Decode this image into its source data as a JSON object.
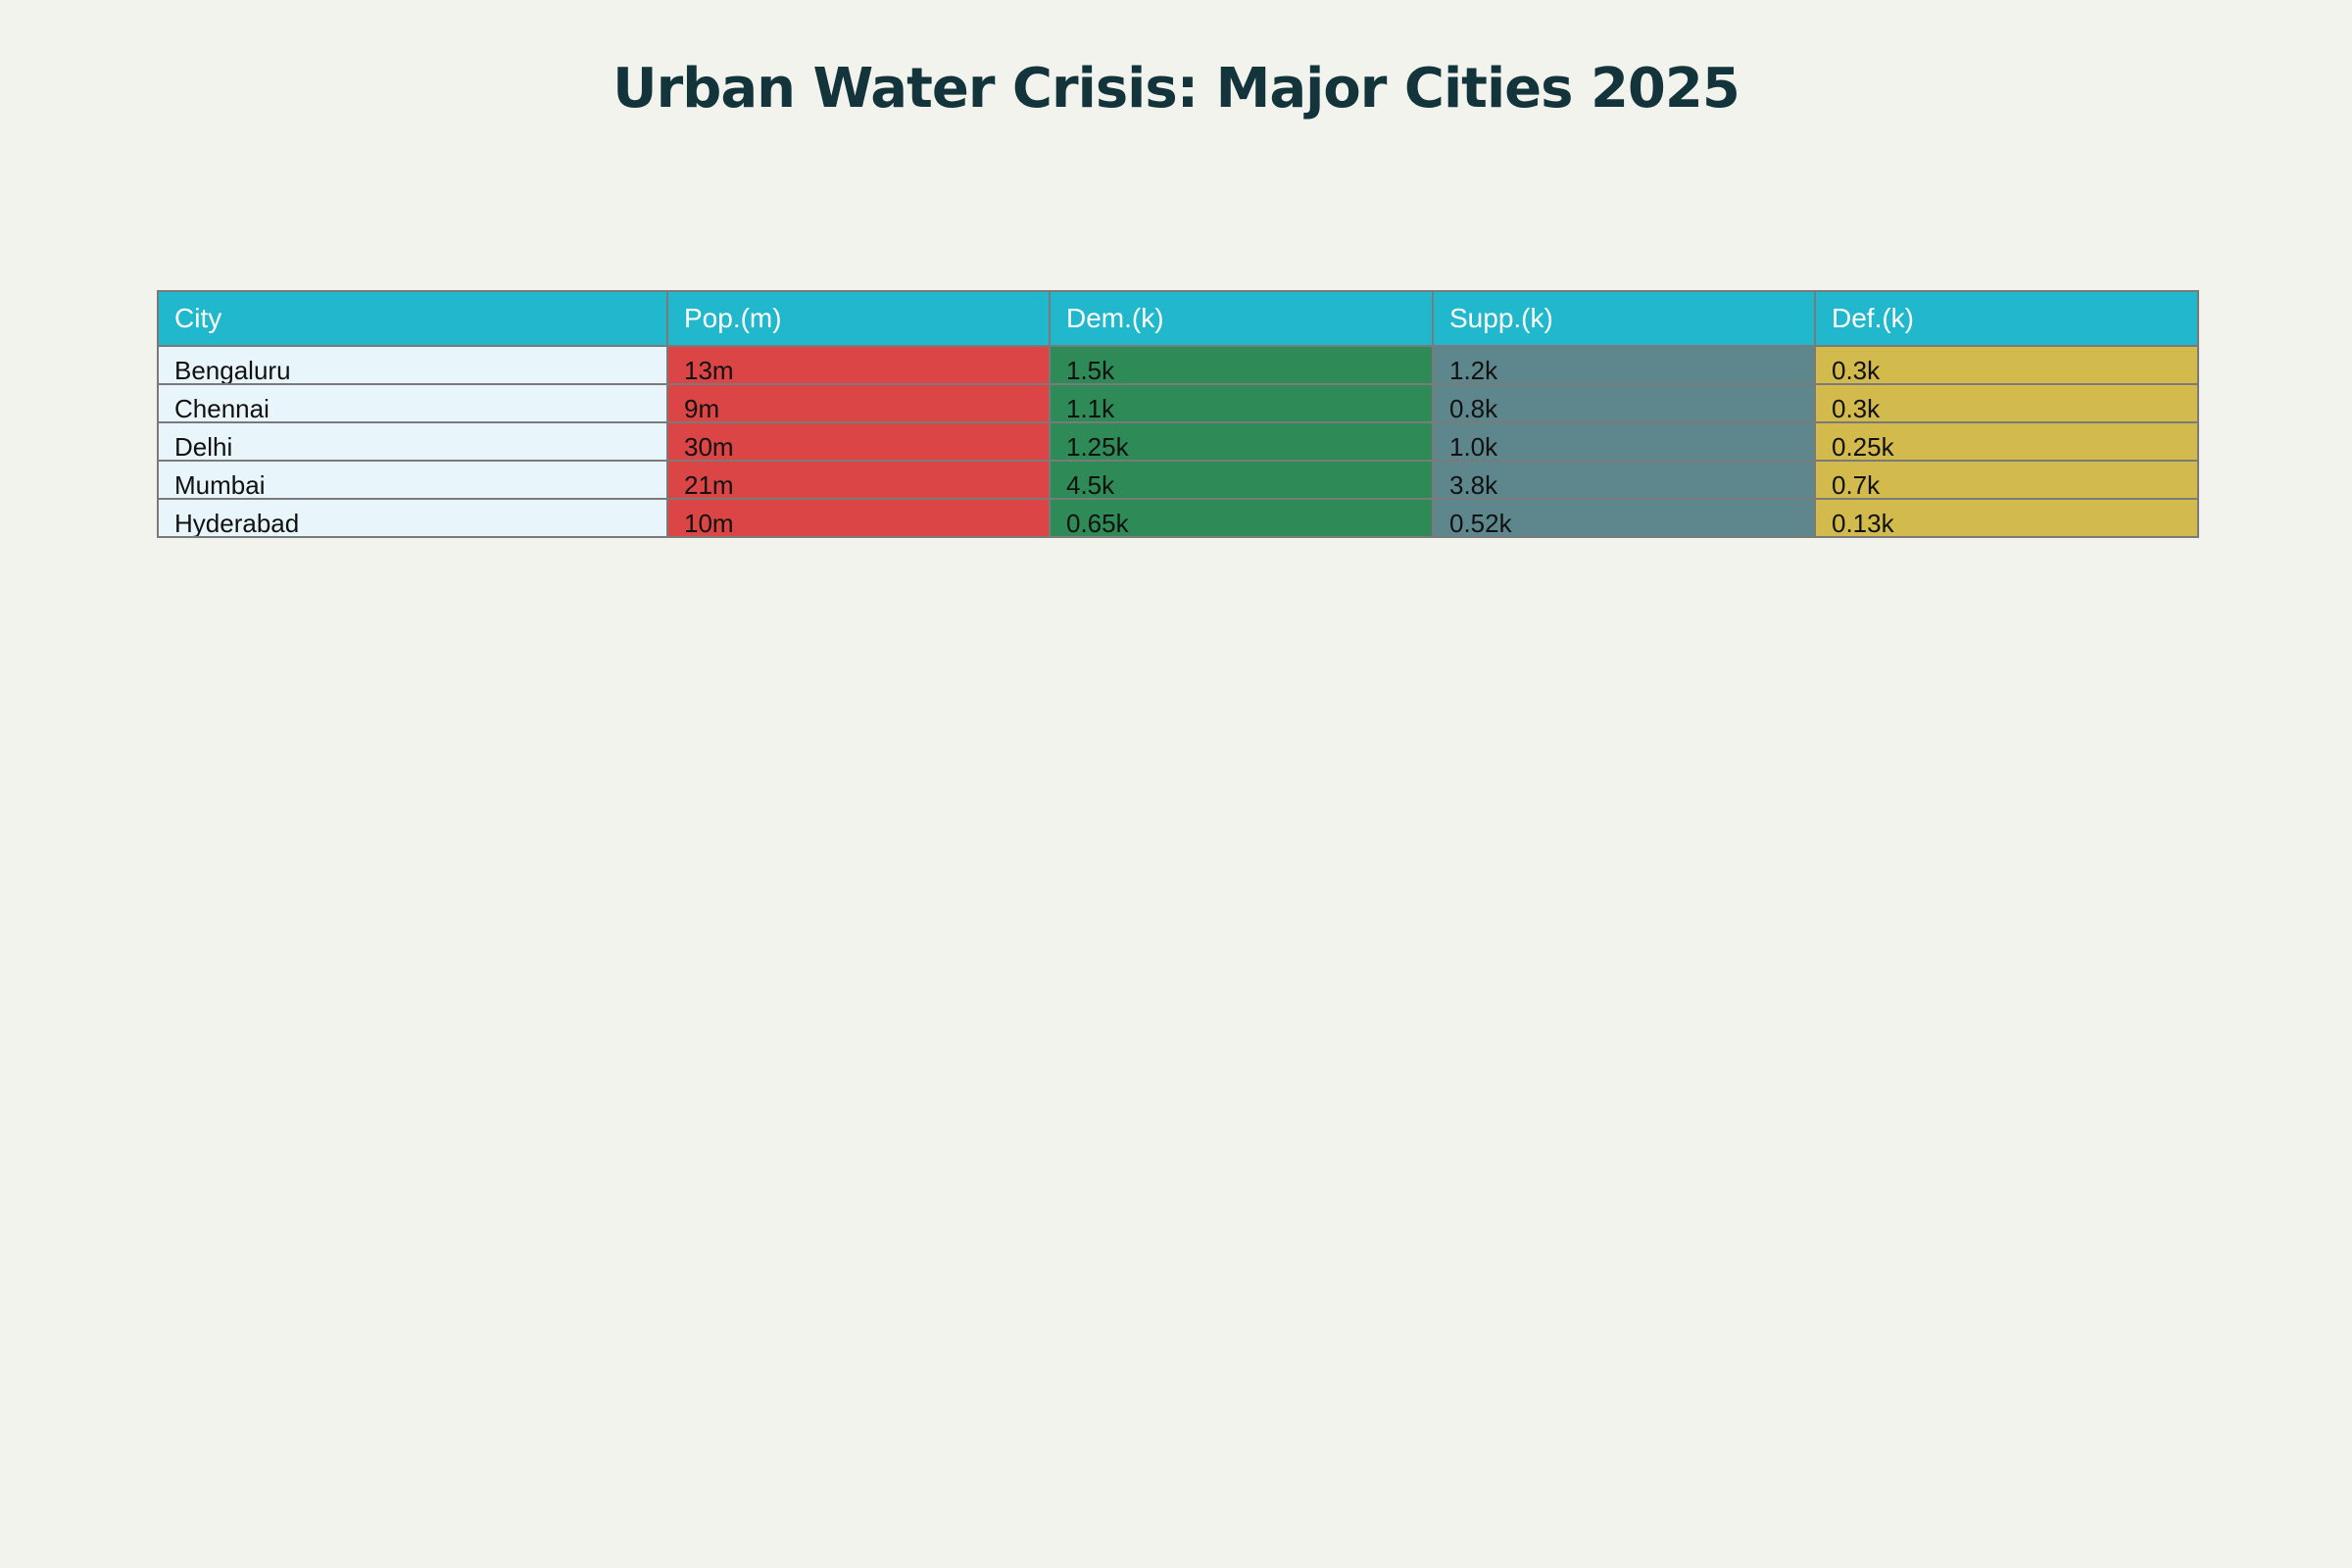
{
  "chart_data": {
    "type": "table",
    "title": "Urban Water Crisis: Major Cities 2025",
    "columns": [
      "City",
      "Pop.(m)",
      "Dem.(k)",
      "Supp.(k)",
      "Def.(k)"
    ],
    "rows": [
      [
        "Bengaluru",
        "13m",
        "1.5k",
        "1.2k",
        "0.3k"
      ],
      [
        "Chennai",
        "9m",
        "1.1k",
        "0.8k",
        "0.3k"
      ],
      [
        "Delhi",
        "30m",
        "1.25k",
        "1.0k",
        "0.25k"
      ],
      [
        "Mumbai",
        "21m",
        "4.5k",
        "3.8k",
        "0.7k"
      ],
      [
        "Hyderabad",
        "10m",
        "0.65k",
        "0.52k",
        "0.13k"
      ]
    ]
  },
  "colors": {
    "header_bg": "#21b8cd",
    "column_fills": [
      "#e8f5fb",
      "#db4545",
      "#2e8b57",
      "#5e878d",
      "#d2ba4c"
    ],
    "title_color": "#13343b",
    "background": "#f3f3ee"
  }
}
